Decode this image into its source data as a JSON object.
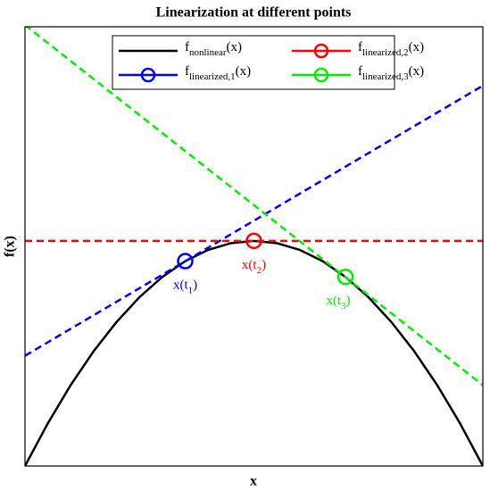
{
  "chart_data": {
    "type": "line",
    "title": "Linearization at different points",
    "x_label": "x",
    "y_label": "f(x)",
    "xlim": [
      0,
      1
    ],
    "ylim": [
      0,
      1
    ],
    "grid": false,
    "series": [
      {
        "name": "f",
        "name_sub": "nonlinear",
        "name_suffix": "(x)",
        "color": "#000000",
        "dashed": false,
        "x": [
          0,
          0.05,
          0.1,
          0.15,
          0.2,
          0.25,
          0.3,
          0.35,
          0.4,
          0.45,
          0.5,
          0.55,
          0.6,
          0.65,
          0.7,
          0.75,
          0.8,
          0.85,
          0.9,
          0.95,
          1
        ],
        "values": [
          0,
          0.0974,
          0.1845,
          0.2614,
          0.328,
          0.3844,
          0.4305,
          0.4664,
          0.492,
          0.5074,
          0.5125,
          0.5074,
          0.492,
          0.4664,
          0.4305,
          0.3844,
          0.328,
          0.2614,
          0.1845,
          0.0974,
          0
        ]
      },
      {
        "name": "f",
        "name_sub": "linearized,1",
        "name_suffix": "(x)",
        "color": "#0000ff",
        "dashed": true,
        "x": [
          0,
          1
        ],
        "values": [
          0.251,
          0.866
        ],
        "marker_x": 0.35,
        "marker_y": 0.4664,
        "annotation": {
          "text": "x(t",
          "sub": "1",
          "suffix": ")"
        }
      },
      {
        "name": "f",
        "name_sub": "linearized,2",
        "name_suffix": "(x)",
        "color": "#ff0000",
        "dashed": true,
        "x": [
          0,
          1
        ],
        "values": [
          0.5125,
          0.5125
        ],
        "marker_x": 0.5,
        "marker_y": 0.5125,
        "annotation": {
          "text": "x(t",
          "sub": "2",
          "suffix": ")"
        }
      },
      {
        "name": "f",
        "name_sub": "linearized,3",
        "name_suffix": "(x)",
        "color": "#00ee00",
        "dashed": true,
        "x": [
          0,
          1
        ],
        "values": [
          1.004,
          0.184
        ],
        "marker_x": 0.7,
        "marker_y": 0.4305,
        "annotation": {
          "text": "x(t",
          "sub": "3",
          "suffix": ")"
        }
      }
    ]
  }
}
